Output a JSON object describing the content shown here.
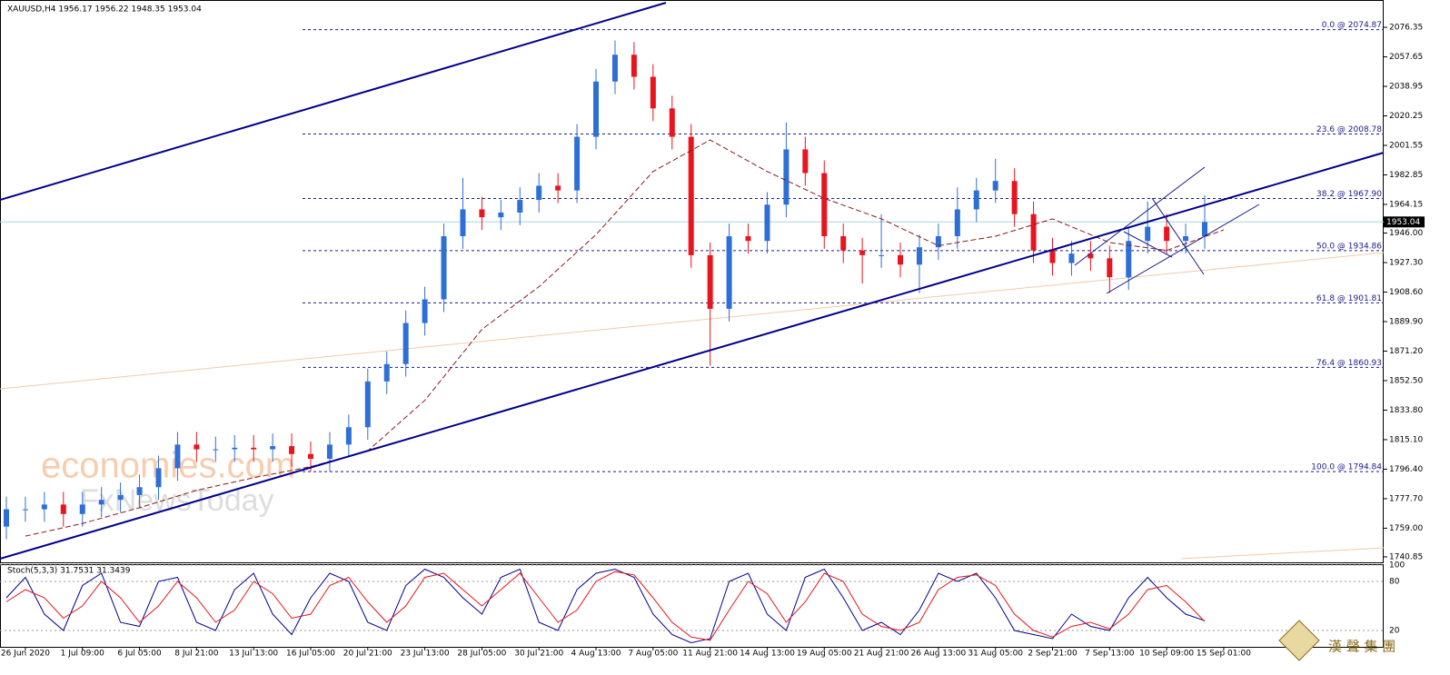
{
  "chart_data": {
    "type": "candlestick",
    "title": "XAUUSD,H4  1956.17 1956.22 1948.35 1953.04",
    "categories": [
      "26 Jun 2020",
      "1 Jul 09:00",
      "6 Jul 05:00",
      "8 Jul 21:00",
      "13 Jul 13:00",
      "16 Jul 05:00",
      "20 Jul 21:00",
      "23 Jul 13:00",
      "28 Jul 05:00",
      "30 Jul 21:00",
      "4 Aug 13:00",
      "7 Aug 05:00",
      "11 Aug 21:00",
      "14 Aug 13:00",
      "19 Aug 05:00",
      "21 Aug 21:00",
      "26 Aug 13:00",
      "31 Aug 05:00",
      "2 Sep 21:00",
      "7 Sep 13:00",
      "10 Sep 09:00",
      "15 Sep 01:00"
    ],
    "candles": {
      "up_color": "#2e6fd6",
      "down_color": "#e8141e",
      "open": [
        1760,
        1771,
        1771,
        1774,
        1768,
        1774,
        1777,
        1780,
        1785,
        1797,
        1812,
        1809,
        1809,
        1810,
        1809,
        1811,
        1806,
        1803,
        1812,
        1823,
        1852,
        1863,
        1889,
        1904,
        1944,
        1961,
        1956,
        1959,
        1967,
        1976,
        1973,
        2007,
        2042,
        2059,
        2045,
        2025,
        2007,
        1932,
        1898,
        1944,
        1941,
        1964,
        1999,
        1984,
        1944,
        1935,
        1932,
        1932,
        1926,
        1937,
        1944,
        1961,
        1973,
        1979,
        1958,
        1935,
        1927,
        1933,
        1930,
        1918,
        1941,
        1950,
        1941,
        1944
      ],
      "high": [
        1779,
        1779,
        1782,
        1782,
        1782,
        1785,
        1788,
        1793,
        1805,
        1820,
        1820,
        1817,
        1818,
        1818,
        1819,
        1819,
        1814,
        1820,
        1831,
        1860,
        1871,
        1897,
        1912,
        1952,
        1981,
        1969,
        1967,
        1975,
        1984,
        1984,
        2015,
        2050,
        2068,
        2067,
        2053,
        2033,
        2015,
        1940,
        1952,
        1952,
        1972,
        2016,
        2007,
        1992,
        1952,
        1943,
        1958,
        1940,
        1945,
        1952,
        1975,
        1981,
        1993,
        1987,
        1966,
        1943,
        1941,
        1941,
        1938,
        1949,
        1966,
        1958,
        1952,
        1970
      ],
      "low": [
        1752,
        1763,
        1763,
        1760,
        1760,
        1766,
        1769,
        1772,
        1777,
        1789,
        1801,
        1801,
        1801,
        1801,
        1801,
        1798,
        1795,
        1795,
        1804,
        1815,
        1844,
        1855,
        1881,
        1896,
        1936,
        1948,
        1948,
        1951,
        1959,
        1965,
        1965,
        1999,
        2034,
        2037,
        2017,
        1999,
        1924,
        1862,
        1890,
        1933,
        1933,
        1956,
        1976,
        1936,
        1927,
        1914,
        1924,
        1918,
        1908,
        1929,
        1936,
        1953,
        1965,
        1950,
        1927,
        1919,
        1919,
        1922,
        1908,
        1910,
        1933,
        1933,
        1933,
        1936
      ],
      "close": [
        1771,
        1771,
        1774,
        1768,
        1774,
        1777,
        1780,
        1785,
        1797,
        1812,
        1809,
        1809,
        1810,
        1809,
        1811,
        1806,
        1803,
        1812,
        1823,
        1852,
        1863,
        1889,
        1904,
        1944,
        1961,
        1956,
        1959,
        1967,
        1976,
        1973,
        2007,
        2042,
        2059,
        2045,
        2025,
        2007,
        1932,
        1898,
        1944,
        1941,
        1964,
        1999,
        1984,
        1944,
        1935,
        1932,
        1932,
        1926,
        1937,
        1944,
        1961,
        1973,
        1979,
        1958,
        1935,
        1927,
        1933,
        1930,
        1918,
        1941,
        1950,
        1941,
        1944,
        1953
      ]
    },
    "ma": {
      "color": "#8b1a1a",
      "values": [
        1754,
        1762,
        1772,
        1783,
        1791,
        1798,
        1808,
        1840,
        1885,
        1912,
        1945,
        1985,
        2005,
        1985,
        1968,
        1955,
        1938,
        1944,
        1955,
        1940,
        1935,
        1948
      ]
    },
    "ylim": [
      1736.8,
      2083.3
    ],
    "yticks": [
      2076.35,
      2057.65,
      2038.95,
      2020.25,
      2001.55,
      1982.85,
      1964.15,
      {
        "value": 1946.0,
        "label": "1946.00"
      },
      {
        "value": 1927.3,
        "label": "1927.30"
      },
      {
        "value": 1908.6,
        "label": "1908.60"
      },
      {
        "value": 1889.9,
        "label": "1889.90"
      },
      {
        "value": 1871.2,
        "label": "1871.20"
      },
      {
        "value": 1852.5,
        "label": "1852.50"
      },
      {
        "value": 1833.8,
        "label": "1833.80"
      },
      {
        "value": 1815.1,
        "label": "1815.10"
      },
      {
        "value": 1796.4,
        "label": "1796.40"
      },
      {
        "value": 1777.7,
        "label": "1777.70"
      },
      {
        "value": 1759.0,
        "label": "1759.00"
      },
      1740.85
    ],
    "fib_levels": {
      "color": "#1a1a8c",
      "levels": [
        {
          "value": 2074.87,
          "label": "0.0 @ 2074.87"
        },
        {
          "value": 2008.78,
          "label": "23.6 @ 2008.78"
        },
        {
          "value": 1967.9,
          "label": "38.2 @ 1967.90"
        },
        {
          "value": 1934.86,
          "label": "50.0 @ 1934.86"
        },
        {
          "value": 1901.81,
          "label": "61.8 @ 1901.81"
        },
        {
          "value": 1860.93,
          "label": "76.4 @ 1860.93"
        },
        {
          "value": 1794.84,
          "label": "100.0 @ 1794.84"
        }
      ]
    },
    "last_price": 1953.04,
    "stoch": {
      "title": "Stoch(5,3,3) 31.7531 31.3439",
      "ylim": [
        0,
        100
      ],
      "yticks": [
        100,
        80,
        20
      ],
      "series": [
        {
          "color": "#00008b",
          "values": [
            60,
            85,
            40,
            20,
            75,
            90,
            30,
            25,
            80,
            85,
            30,
            20,
            70,
            90,
            40,
            15,
            60,
            90,
            80,
            30,
            20,
            75,
            95,
            85,
            60,
            40,
            85,
            95,
            30,
            20,
            70,
            90,
            95,
            85,
            40,
            15,
            5,
            10,
            80,
            90,
            40,
            20,
            85,
            95,
            60,
            20,
            30,
            15,
            45,
            90,
            80,
            90,
            60,
            20,
            15,
            10,
            40,
            25,
            20,
            60,
            85,
            60,
            40,
            32
          ]
        },
        {
          "color": "#e8141e",
          "values": [
            55,
            70,
            60,
            35,
            50,
            80,
            60,
            30,
            50,
            80,
            60,
            30,
            45,
            80,
            65,
            35,
            40,
            75,
            85,
            55,
            30,
            50,
            85,
            90,
            70,
            50,
            70,
            90,
            60,
            30,
            45,
            80,
            92,
            88,
            60,
            30,
            12,
            8,
            45,
            80,
            65,
            30,
            55,
            90,
            80,
            40,
            25,
            20,
            30,
            70,
            85,
            88,
            75,
            40,
            20,
            12,
            25,
            30,
            22,
            40,
            70,
            75,
            55,
            31
          ]
        }
      ]
    },
    "watermarks": [
      "economies.com",
      "FxNewsToday"
    ],
    "logo": "漢 聲 集 團"
  }
}
